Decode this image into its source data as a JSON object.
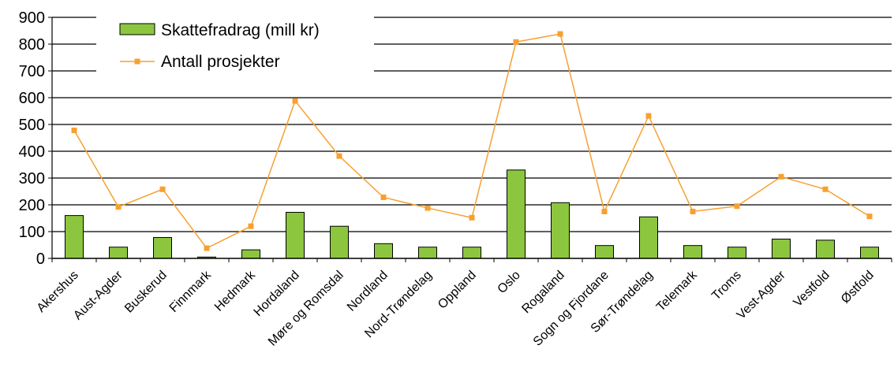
{
  "chart_data": {
    "type": "bar",
    "categories": [
      "Akershus",
      "Aust-Agder",
      "Buskerud",
      "Finnmark",
      "Hedmark",
      "Hordaland",
      "Møre og Romsdal",
      "Nordland",
      "Nord-Trøndelag",
      "Oppland",
      "Oslo",
      "Rogaland",
      "Sogn og Fjordane",
      "Sør-Trøndelag",
      "Telemark",
      "Troms",
      "Vest-Agder",
      "Vestfold",
      "Østfold"
    ],
    "series": [
      {
        "name": "Skattefradrag (mill kr)",
        "type": "bar",
        "color": "#8cc63f",
        "values": [
          160,
          42,
          78,
          5,
          32,
          172,
          120,
          55,
          42,
          42,
          330,
          208,
          48,
          155,
          48,
          42,
          72,
          68,
          42
        ]
      },
      {
        "name": "Antall prosjekter",
        "type": "line",
        "color": "#f7a030",
        "values": [
          478,
          192,
          258,
          38,
          120,
          588,
          382,
          228,
          188,
          152,
          808,
          838,
          175,
          532,
          175,
          195,
          305,
          258,
          157
        ]
      }
    ],
    "ylim": [
      0,
      900
    ],
    "yticks": [
      "0",
      "100",
      "200",
      "300",
      "400",
      "500",
      "600",
      "700",
      "800",
      "900"
    ],
    "grid": true,
    "legend_position": "top-left"
  }
}
